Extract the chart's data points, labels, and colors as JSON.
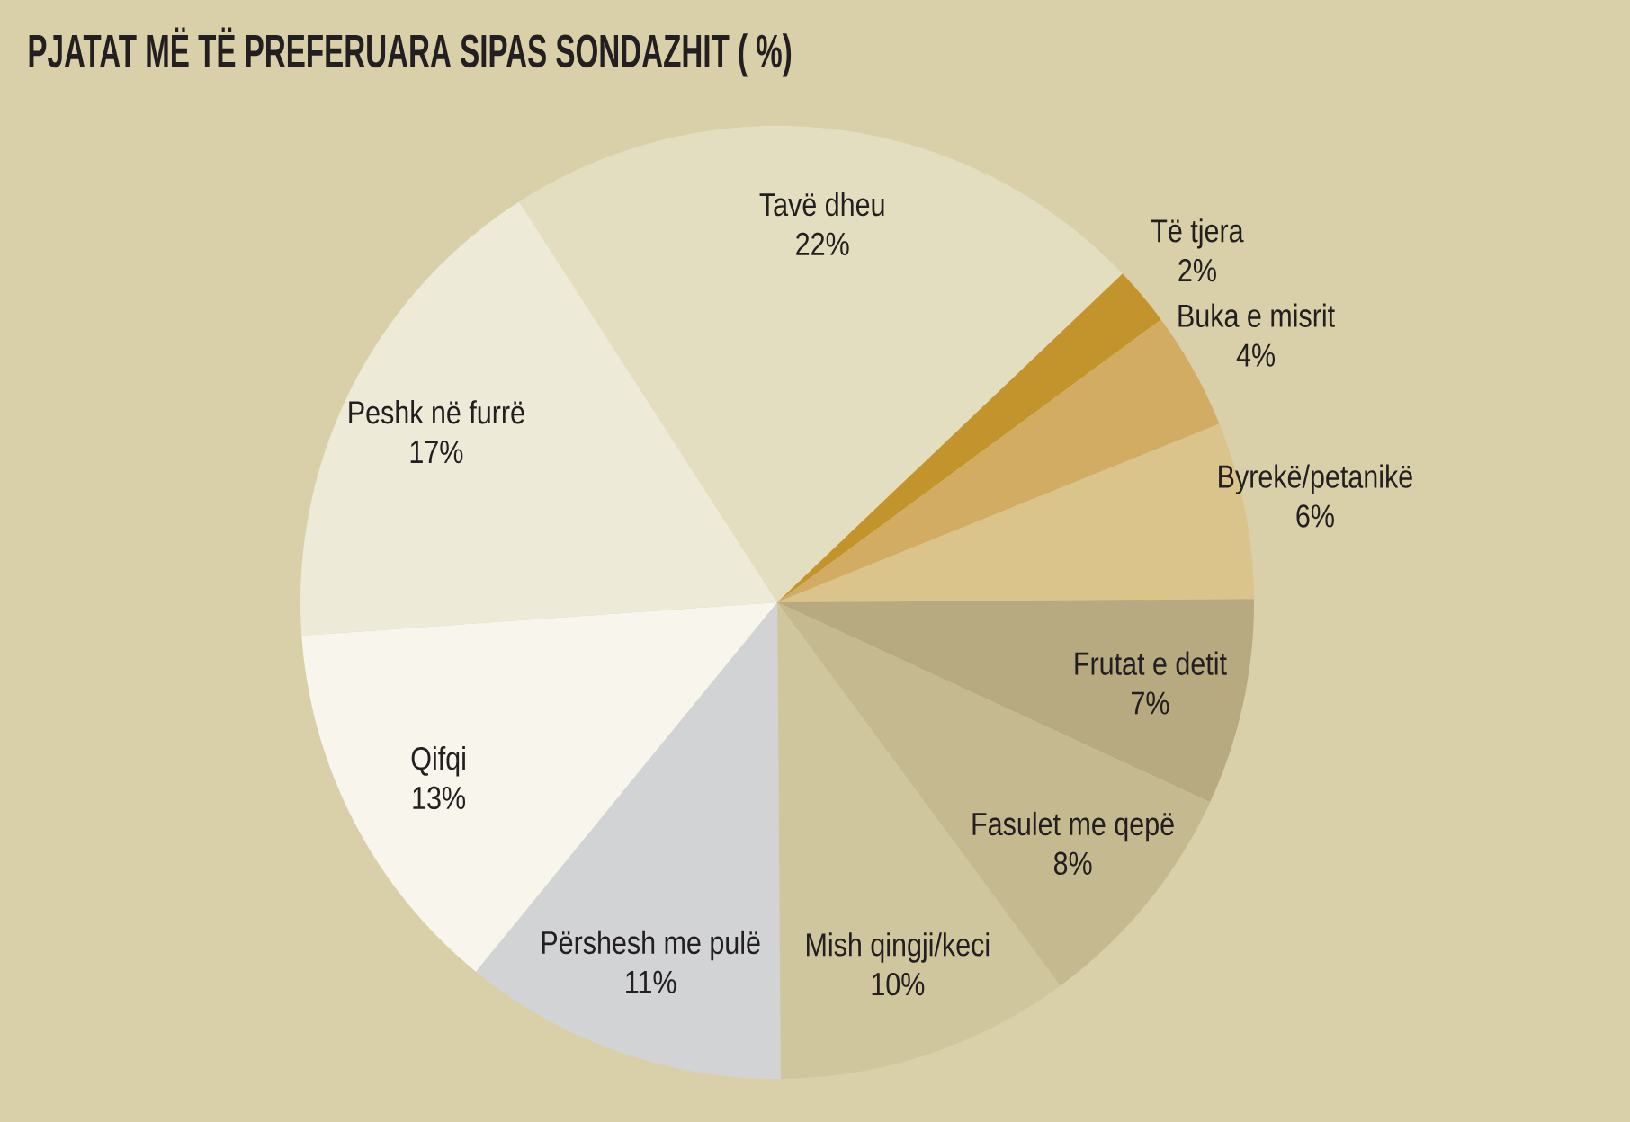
{
  "chart_data": {
    "type": "pie",
    "title": "PJATAT MË TË PREFERUARA SIPAS SONDAZHIT ( %)",
    "categories": [
      "Tavë dheu",
      "Të tjera",
      "Buka e misrit",
      "Byrekë/petanikë",
      "Frutat e detit",
      "Fasulet me qepë",
      "Mish qingji/keci",
      "Përshesh me pulë",
      "Qifqi",
      "Peshk në furrë"
    ],
    "values": [
      22,
      2,
      4,
      6,
      7,
      8,
      10,
      11,
      13,
      17
    ],
    "colors": [
      "#e4dec0",
      "#c4942c",
      "#d2ac62",
      "#dac48c",
      "#b7aa80",
      "#c5b98f",
      "#d0c69e",
      "#d2d3d5",
      "#f7f5ec",
      "#eeead8"
    ],
    "value_labels": [
      "22%",
      "2%",
      "4%",
      "6%",
      "7%",
      "8%",
      "10%",
      "11%",
      "13%",
      "17%"
    ]
  }
}
